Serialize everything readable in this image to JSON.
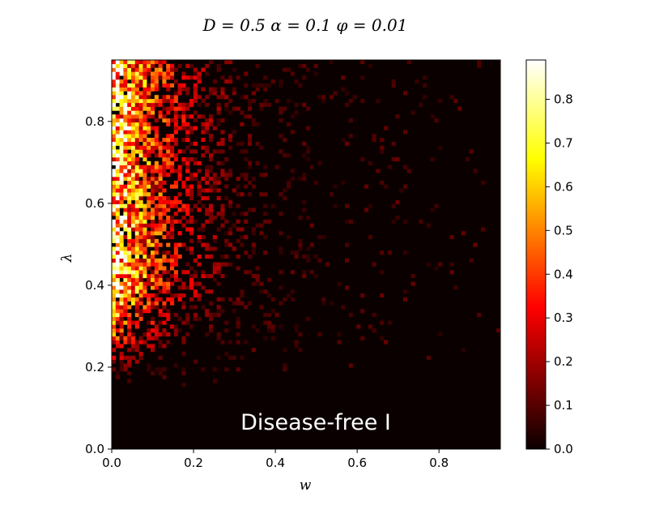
{
  "chart_data": {
    "type": "heatmap",
    "title": "D = 0.5 α = 0.1 φ = 0.01",
    "xlabel": "w",
    "ylabel": "λ",
    "xlim": [
      0.0,
      0.95
    ],
    "ylim": [
      0.0,
      0.95
    ],
    "x_ticks": [
      "0.0",
      "0.2",
      "0.4",
      "0.6",
      "0.8"
    ],
    "y_ticks": [
      "0.0",
      "0.2",
      "0.4",
      "0.6",
      "0.8"
    ],
    "colormap": "hot",
    "colorbar": {
      "range": [
        0.0,
        0.89
      ],
      "ticks": [
        "0.0",
        "0.1",
        "0.2",
        "0.3",
        "0.4",
        "0.5",
        "0.6",
        "0.7",
        "0.8"
      ]
    },
    "grid_size": [
      100,
      100
    ],
    "annotation": "Disease-free I",
    "grid": false
  }
}
